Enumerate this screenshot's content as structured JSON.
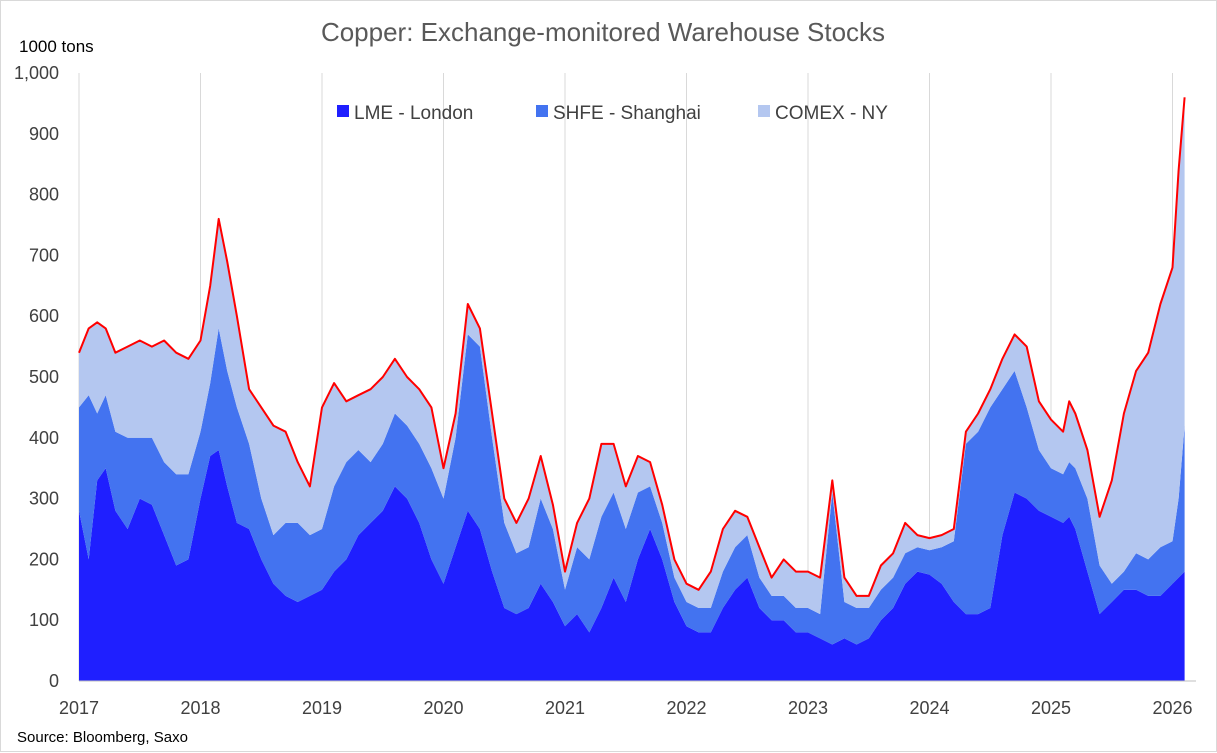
{
  "chart_data": {
    "type": "area",
    "stacked": true,
    "title": "Copper: Exchange-monitored Warehouse Stocks",
    "ylabel": "1000 tons",
    "ylim": [
      0,
      1000
    ],
    "xlim": [
      2017.0,
      2026.1
    ],
    "yticks": [
      0,
      100,
      200,
      300,
      400,
      500,
      600,
      700,
      800,
      900,
      1000
    ],
    "ytick_labels": [
      "0",
      "100",
      "200",
      "300",
      "400",
      "500",
      "600",
      "700",
      "800",
      "900",
      "1,000"
    ],
    "xticks": [
      2017,
      2018,
      2019,
      2020,
      2021,
      2022,
      2023,
      2024,
      2025,
      2026
    ],
    "xtick_labels": [
      "2017",
      "2018",
      "2019",
      "2020",
      "2021",
      "2022",
      "2023",
      "2024",
      "2025",
      "2026"
    ],
    "grid": "vertical",
    "legend_position": "top",
    "source": "Source: Bloomberg, Saxo",
    "x": [
      2017.0,
      2017.08,
      2017.15,
      2017.22,
      2017.3,
      2017.4,
      2017.5,
      2017.6,
      2017.7,
      2017.8,
      2017.9,
      2018.0,
      2018.08,
      2018.15,
      2018.22,
      2018.3,
      2018.4,
      2018.5,
      2018.6,
      2018.7,
      2018.8,
      2018.9,
      2019.0,
      2019.1,
      2019.2,
      2019.3,
      2019.4,
      2019.5,
      2019.6,
      2019.7,
      2019.8,
      2019.9,
      2020.0,
      2020.1,
      2020.2,
      2020.3,
      2020.4,
      2020.5,
      2020.6,
      2020.7,
      2020.8,
      2020.9,
      2021.0,
      2021.1,
      2021.2,
      2021.3,
      2021.4,
      2021.5,
      2021.6,
      2021.7,
      2021.8,
      2021.9,
      2022.0,
      2022.1,
      2022.2,
      2022.3,
      2022.4,
      2022.5,
      2022.6,
      2022.7,
      2022.8,
      2022.9,
      2023.0,
      2023.1,
      2023.2,
      2023.3,
      2023.4,
      2023.5,
      2023.6,
      2023.7,
      2023.8,
      2023.9,
      2024.0,
      2024.1,
      2024.2,
      2024.3,
      2024.4,
      2024.5,
      2024.6,
      2024.7,
      2024.8,
      2024.9,
      2025.0,
      2025.1,
      2025.15,
      2025.2,
      2025.3,
      2025.4,
      2025.5,
      2025.6,
      2025.7,
      2025.8,
      2025.9,
      2026.0,
      2026.05,
      2026.1
    ],
    "series": [
      {
        "name": "LME - London",
        "color": "#1f1fff",
        "values": [
          280,
          200,
          330,
          350,
          280,
          250,
          300,
          290,
          240,
          190,
          200,
          300,
          370,
          380,
          320,
          260,
          250,
          200,
          160,
          140,
          130,
          140,
          150,
          180,
          200,
          240,
          260,
          280,
          320,
          300,
          260,
          200,
          160,
          220,
          280,
          250,
          180,
          120,
          110,
          120,
          160,
          130,
          90,
          110,
          80,
          120,
          170,
          130,
          200,
          250,
          200,
          130,
          90,
          80,
          80,
          120,
          150,
          170,
          120,
          100,
          100,
          80,
          80,
          70,
          60,
          70,
          60,
          70,
          100,
          120,
          160,
          180,
          175,
          160,
          130,
          110,
          110,
          120,
          240,
          310,
          300,
          280,
          270,
          260,
          270,
          250,
          180,
          110,
          130,
          150,
          150,
          140,
          140,
          160,
          170,
          180
        ]
      },
      {
        "name": "SHFE - Shanghai",
        "color": "#4373f0",
        "values": [
          170,
          270,
          110,
          120,
          130,
          150,
          100,
          110,
          120,
          150,
          140,
          110,
          120,
          200,
          190,
          190,
          140,
          100,
          80,
          120,
          130,
          100,
          100,
          140,
          160,
          140,
          100,
          110,
          120,
          120,
          130,
          150,
          140,
          180,
          290,
          300,
          220,
          140,
          100,
          100,
          140,
          120,
          60,
          110,
          120,
          150,
          140,
          120,
          110,
          70,
          60,
          40,
          40,
          40,
          40,
          60,
          70,
          70,
          50,
          40,
          40,
          40,
          40,
          40,
          250,
          60,
          60,
          50,
          50,
          50,
          50,
          40,
          40,
          60,
          100,
          280,
          300,
          330,
          240,
          200,
          150,
          100,
          80,
          80,
          90,
          100,
          120,
          80,
          30,
          30,
          60,
          60,
          80,
          70,
          130,
          240
        ]
      },
      {
        "name": "COMEX - NY",
        "color": "#b4c7f0",
        "values": [
          90,
          110,
          150,
          110,
          130,
          150,
          160,
          150,
          200,
          200,
          190,
          150,
          160,
          180,
          180,
          150,
          90,
          150,
          180,
          150,
          100,
          80,
          200,
          170,
          100,
          90,
          120,
          110,
          90,
          80,
          90,
          100,
          50,
          40,
          50,
          30,
          40,
          40,
          50,
          80,
          70,
          40,
          30,
          40,
          100,
          120,
          80,
          70,
          60,
          40,
          30,
          30,
          30,
          30,
          60,
          70,
          60,
          30,
          50,
          30,
          60,
          60,
          60,
          60,
          20,
          40,
          20,
          20,
          40,
          40,
          50,
          20,
          20,
          20,
          20,
          20,
          30,
          30,
          50,
          60,
          100,
          80,
          80,
          70,
          100,
          90,
          80,
          80,
          170,
          260,
          300,
          340,
          400,
          450,
          540,
          540
        ]
      }
    ],
    "total_line": {
      "name": "Total",
      "color": "#ff0000"
    }
  }
}
